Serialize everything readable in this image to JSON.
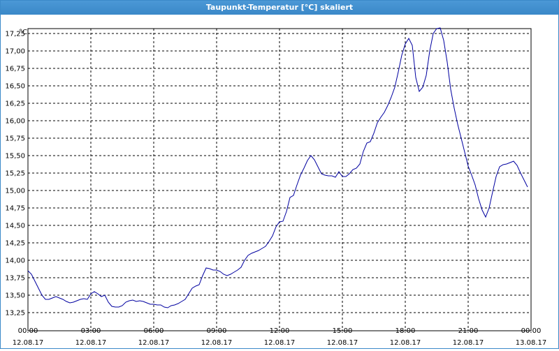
{
  "window": {
    "title": "Taupunkt-Temperatur [°C] skaliert"
  },
  "chart_data": {
    "type": "line",
    "title": "Taupunkt-Temperatur [°C] skaliert",
    "ylabel": "°C",
    "xlabel": "",
    "xlim": [
      "12.08.17 00:00",
      "13.08.17 00:00"
    ],
    "ylim": [
      13.15,
      17.5
    ],
    "grid": true,
    "colors": {
      "line": "#0000a0",
      "grid": "#000000"
    },
    "y_ticks": [
      "13,25",
      "13,50",
      "13,75",
      "14,00",
      "14,25",
      "14,50",
      "14,75",
      "15,00",
      "15,25",
      "15,50",
      "15,75",
      "16,00",
      "16,25",
      "16,50",
      "16,75",
      "17,00",
      "17,25"
    ],
    "y_tick_values": [
      13.25,
      13.5,
      13.75,
      14.0,
      14.25,
      14.5,
      14.75,
      15.0,
      15.25,
      15.5,
      15.75,
      16.0,
      16.25,
      16.5,
      16.75,
      17.0,
      17.25
    ],
    "x_ticks": [
      {
        "time": "00:00",
        "date": "12.08.17"
      },
      {
        "time": "03:00",
        "date": "12.08.17"
      },
      {
        "time": "06:00",
        "date": "12.08.17"
      },
      {
        "time": "09:00",
        "date": "12.08.17"
      },
      {
        "time": "12:00",
        "date": "12.08.17"
      },
      {
        "time": "15:00",
        "date": "12.08.17"
      },
      {
        "time": "18:00",
        "date": "12.08.17"
      },
      {
        "time": "21:00",
        "date": "12.08.17"
      },
      {
        "time": "00:00",
        "date": "13.08.17"
      }
    ],
    "series": [
      {
        "values": [
          [
            "00:00",
            13.85
          ],
          [
            "00:10",
            13.8
          ],
          [
            "00:20",
            13.7
          ],
          [
            "00:30",
            13.6
          ],
          [
            "00:40",
            13.5
          ],
          [
            "00:50",
            13.44
          ],
          [
            "01:00",
            13.44
          ],
          [
            "01:10",
            13.46
          ],
          [
            "01:20",
            13.48
          ],
          [
            "01:30",
            13.46
          ],
          [
            "01:40",
            13.44
          ],
          [
            "01:50",
            13.41
          ],
          [
            "02:00",
            13.39
          ],
          [
            "02:10",
            13.4
          ],
          [
            "02:20",
            13.42
          ],
          [
            "02:30",
            13.44
          ],
          [
            "02:40",
            13.45
          ],
          [
            "02:50",
            13.44
          ],
          [
            "03:00",
            13.52
          ],
          [
            "03:10",
            13.55
          ],
          [
            "03:20",
            13.52
          ],
          [
            "03:30",
            13.48
          ],
          [
            "03:40",
            13.5
          ],
          [
            "03:50",
            13.4
          ],
          [
            "04:00",
            13.34
          ],
          [
            "04:10",
            13.33
          ],
          [
            "04:20",
            13.33
          ],
          [
            "04:30",
            13.35
          ],
          [
            "04:40",
            13.4
          ],
          [
            "04:50",
            13.42
          ],
          [
            "05:00",
            13.43
          ],
          [
            "05:10",
            13.41
          ],
          [
            "05:20",
            13.42
          ],
          [
            "05:30",
            13.41
          ],
          [
            "05:40",
            13.39
          ],
          [
            "05:50",
            13.37
          ],
          [
            "06:00",
            13.37
          ],
          [
            "06:10",
            13.36
          ],
          [
            "06:20",
            13.36
          ],
          [
            "06:30",
            13.33
          ],
          [
            "06:40",
            13.32
          ],
          [
            "06:50",
            13.35
          ],
          [
            "07:00",
            13.36
          ],
          [
            "07:10",
            13.38
          ],
          [
            "07:20",
            13.41
          ],
          [
            "07:30",
            13.44
          ],
          [
            "07:40",
            13.52
          ],
          [
            "07:50",
            13.6
          ],
          [
            "08:00",
            13.63
          ],
          [
            "08:10",
            13.65
          ],
          [
            "08:20",
            13.78
          ],
          [
            "08:30",
            13.89
          ],
          [
            "08:40",
            13.88
          ],
          [
            "08:50",
            13.86
          ],
          [
            "09:00",
            13.86
          ],
          [
            "09:10",
            13.84
          ],
          [
            "09:20",
            13.8
          ],
          [
            "09:30",
            13.78
          ],
          [
            "09:40",
            13.8
          ],
          [
            "09:50",
            13.83
          ],
          [
            "10:00",
            13.86
          ],
          [
            "10:10",
            13.9
          ],
          [
            "10:20",
            14.0
          ],
          [
            "10:30",
            14.07
          ],
          [
            "10:40",
            14.1
          ],
          [
            "10:50",
            14.12
          ],
          [
            "11:00",
            14.14
          ],
          [
            "11:10",
            14.17
          ],
          [
            "11:20",
            14.2
          ],
          [
            "11:30",
            14.27
          ],
          [
            "11:40",
            14.35
          ],
          [
            "11:50",
            14.48
          ],
          [
            "12:00",
            14.55
          ],
          [
            "12:10",
            14.56
          ],
          [
            "12:20",
            14.7
          ],
          [
            "12:30",
            14.9
          ],
          [
            "12:40",
            14.93
          ],
          [
            "12:50",
            15.08
          ],
          [
            "13:00",
            15.22
          ],
          [
            "13:10",
            15.32
          ],
          [
            "13:20",
            15.43
          ],
          [
            "13:30",
            15.5
          ],
          [
            "13:40",
            15.44
          ],
          [
            "13:50",
            15.34
          ],
          [
            "14:00",
            15.24
          ],
          [
            "14:10",
            15.22
          ],
          [
            "14:20",
            15.21
          ],
          [
            "14:30",
            15.21
          ],
          [
            "14:40",
            15.19
          ],
          [
            "14:50",
            15.27
          ],
          [
            "15:00",
            15.2
          ],
          [
            "15:10",
            15.2
          ],
          [
            "15:20",
            15.24
          ],
          [
            "15:30",
            15.3
          ],
          [
            "15:40",
            15.32
          ],
          [
            "15:50",
            15.38
          ],
          [
            "16:00",
            15.56
          ],
          [
            "16:10",
            15.68
          ],
          [
            "16:20",
            15.7
          ],
          [
            "16:30",
            15.82
          ],
          [
            "16:40",
            15.97
          ],
          [
            "16:50",
            16.05
          ],
          [
            "17:00",
            16.12
          ],
          [
            "17:10",
            16.22
          ],
          [
            "17:20",
            16.34
          ],
          [
            "17:30",
            16.48
          ],
          [
            "17:40",
            16.7
          ],
          [
            "17:50",
            16.94
          ],
          [
            "18:00",
            17.1
          ],
          [
            "18:10",
            17.18
          ],
          [
            "18:20",
            17.08
          ],
          [
            "18:30",
            16.62
          ],
          [
            "18:40",
            16.42
          ],
          [
            "18:50",
            16.48
          ],
          [
            "19:00",
            16.65
          ],
          [
            "19:10",
            17.0
          ],
          [
            "19:20",
            17.25
          ],
          [
            "19:30",
            17.32
          ],
          [
            "19:40",
            17.33
          ],
          [
            "19:50",
            17.15
          ],
          [
            "20:00",
            16.84
          ],
          [
            "20:10",
            16.45
          ],
          [
            "20:20",
            16.18
          ],
          [
            "20:30",
            15.95
          ],
          [
            "20:40",
            15.75
          ],
          [
            "20:50",
            15.55
          ],
          [
            "21:00",
            15.35
          ],
          [
            "21:10",
            15.22
          ],
          [
            "21:20",
            15.08
          ],
          [
            "21:30",
            14.88
          ],
          [
            "21:40",
            14.72
          ],
          [
            "21:50",
            14.62
          ],
          [
            "22:00",
            14.75
          ],
          [
            "22:10",
            14.98
          ],
          [
            "22:20",
            15.2
          ],
          [
            "22:30",
            15.34
          ],
          [
            "22:40",
            15.37
          ],
          [
            "22:50",
            15.38
          ],
          [
            "23:00",
            15.4
          ],
          [
            "23:10",
            15.42
          ],
          [
            "23:20",
            15.36
          ],
          [
            "23:30",
            15.25
          ],
          [
            "23:40",
            15.15
          ],
          [
            "23:50",
            15.05
          ]
        ]
      }
    ]
  }
}
